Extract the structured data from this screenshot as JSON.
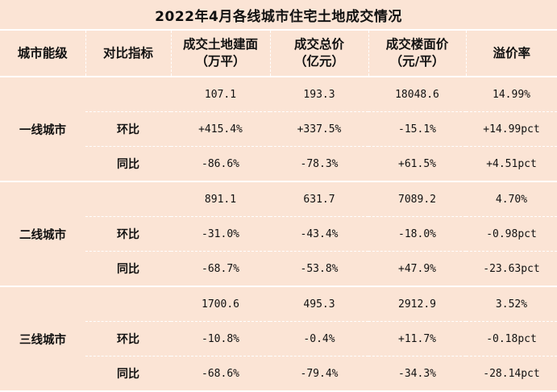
{
  "title": "2022年4月各线城市住宅土地成交情况",
  "headers": [
    "城市能级",
    "对比指标",
    "成交土地建面\n（万平）",
    "成交总价\n（亿元）",
    "成交楼面价\n（元/平）",
    "溢价率"
  ],
  "header_lines": [
    [
      "城市能级"
    ],
    [
      "对比指标"
    ],
    [
      "成交土地建面",
      "（万平）"
    ],
    [
      "成交总价",
      "（亿元）"
    ],
    [
      "成交楼面价",
      "（元/平）"
    ],
    [
      "溢价率"
    ]
  ],
  "groups": [
    {
      "city": "一线城市",
      "rows": [
        {
          "metric": "",
          "values": [
            "107.1",
            "193.3",
            "18048.6",
            "14.99%"
          ]
        },
        {
          "metric": "环比",
          "values": [
            "+415.4%",
            "+337.5%",
            "-15.1%",
            "+14.99pct"
          ]
        },
        {
          "metric": "同比",
          "values": [
            "-86.6%",
            "-78.3%",
            "+61.5%",
            "+4.51pct"
          ]
        }
      ]
    },
    {
      "city": "二线城市",
      "rows": [
        {
          "metric": "",
          "values": [
            "891.1",
            "631.7",
            "7089.2",
            "4.70%"
          ]
        },
        {
          "metric": "环比",
          "values": [
            "-31.0%",
            "-43.4%",
            "-18.0%",
            "-0.98pct"
          ]
        },
        {
          "metric": "同比",
          "values": [
            "-68.7%",
            "-53.8%",
            "+47.9%",
            "-23.63pct"
          ]
        }
      ]
    },
    {
      "city": "三线城市",
      "rows": [
        {
          "metric": "",
          "values": [
            "1700.6",
            "495.3",
            "2912.9",
            "3.52%"
          ]
        },
        {
          "metric": "环比",
          "values": [
            "-10.8%",
            "-0.4%",
            "+11.7%",
            "-0.18pct"
          ]
        },
        {
          "metric": "同比",
          "values": [
            "-68.6%",
            "-79.4%",
            "-34.3%",
            "-28.14pct"
          ]
        }
      ]
    }
  ],
  "colors": {
    "background": "#fbe4d5",
    "rule": "#ffffff",
    "text": "#111111"
  }
}
